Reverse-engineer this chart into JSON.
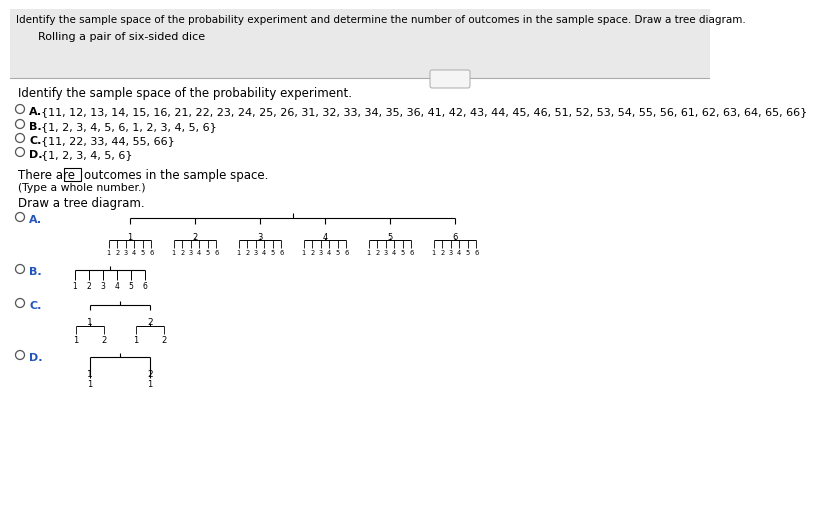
{
  "title_text": "Identify the sample space of the probability experiment and determine the number of outcomes in the sample space. Draw a tree diagram.",
  "subtitle_text": "Rolling a pair of six-sided dice",
  "question_text": "Identify the sample space of the probability experiment.",
  "opt_a_text": "{11, 12, 13, 14, 15, 16, 21, 22, 23, 24, 25, 26, 31, 32, 33, 34, 35, 36, 41, 42, 43, 44, 45, 46, 51, 52, 53, 54, 55, 56, 61, 62, 63, 64, 65, 66}",
  "opt_b_text": "{1, 2, 3, 4, 5, 6, 1, 2, 3, 4, 5, 6}",
  "opt_c_text": "{11, 22, 33, 44, 55, 66}",
  "opt_d_text": "{1, 2, 3, 4, 5, 6}",
  "there_are": "There are",
  "outcomes_text": "outcomes in the sample space.",
  "type_text": "(Type a whole number.)",
  "draw_text": "Draw a tree diagram.",
  "bg_top": "#e8e8e8",
  "bg_bottom": "#ffffff",
  "label_color": "#2255bb",
  "line_color": "#000000",
  "text_color": "#000000"
}
